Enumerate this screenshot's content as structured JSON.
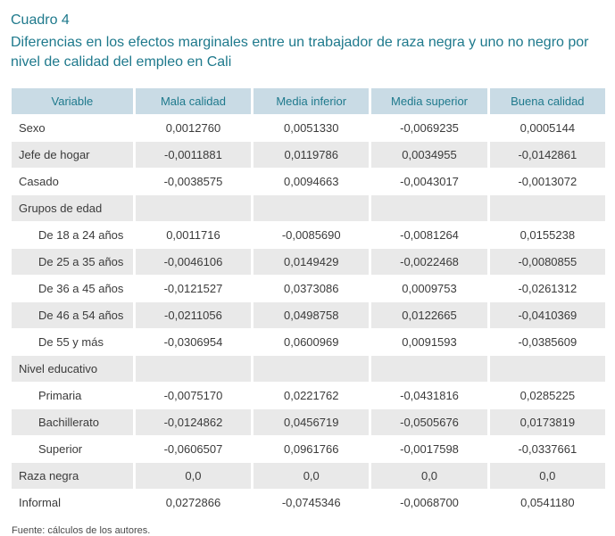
{
  "page": {
    "title": "Cuadro 4",
    "subtitle": "Diferencias en los efectos marginales entre un trabajador de raza negra y uno no negro por nivel de calidad del empleo en Cali",
    "source": "Fuente: cálculos de los autores."
  },
  "colors": {
    "accent_teal": "#1e798c",
    "header_bg": "#c9dbe5",
    "row_alt_bg": "#e9e9e9"
  },
  "table": {
    "columns": [
      "Variable",
      "Mala calidad",
      "Media inferior",
      "Media superior",
      "Buena calidad"
    ],
    "rows": [
      {
        "label": "Sexo",
        "type": "item",
        "values": [
          "0,0012760",
          "0,0051330",
          "-0,0069235",
          "0,0005144"
        ]
      },
      {
        "label": "Jefe de hogar",
        "type": "item",
        "values": [
          "-0,0011881",
          "0,0119786",
          "0,0034955",
          "-0,0142861"
        ]
      },
      {
        "label": "Casado",
        "type": "item",
        "values": [
          "-0,0038575",
          "0,0094663",
          "-0,0043017",
          "-0,0013072"
        ]
      },
      {
        "label": "Grupos de edad",
        "type": "section",
        "values": [
          "",
          "",
          "",
          ""
        ]
      },
      {
        "label": "De 18 a 24 años",
        "type": "sub",
        "values": [
          "0,0011716",
          "-0,0085690",
          "-0,0081264",
          "0,0155238"
        ]
      },
      {
        "label": "De 25 a 35 años",
        "type": "sub",
        "values": [
          "-0,0046106",
          "0,0149429",
          "-0,0022468",
          "-0,0080855"
        ]
      },
      {
        "label": "De 36 a 45 años",
        "type": "sub",
        "values": [
          "-0,0121527",
          "0,0373086",
          "0,0009753",
          "-0,0261312"
        ]
      },
      {
        "label": "De 46 a 54 años",
        "type": "sub",
        "values": [
          "-0,0211056",
          "0,0498758",
          "0,0122665",
          "-0,0410369"
        ]
      },
      {
        "label": "De 55 y más",
        "type": "sub",
        "values": [
          "-0,0306954",
          "0,0600969",
          "0,0091593",
          "-0,0385609"
        ]
      },
      {
        "label": "Nivel educativo",
        "type": "section",
        "values": [
          "",
          "",
          "",
          ""
        ]
      },
      {
        "label": "Primaria",
        "type": "sub",
        "values": [
          "-0,0075170",
          "0,0221762",
          "-0,0431816",
          "0,0285225"
        ]
      },
      {
        "label": "Bachillerato",
        "type": "sub",
        "values": [
          "-0,0124862",
          "0,0456719",
          "-0,0505676",
          "0,0173819"
        ]
      },
      {
        "label": "Superior",
        "type": "sub",
        "values": [
          "-0,0606507",
          "0,0961766",
          "-0,0017598",
          "-0,0337661"
        ]
      },
      {
        "label": "Raza negra",
        "type": "item",
        "values": [
          "0,0",
          "0,0",
          "0,0",
          "0,0"
        ]
      },
      {
        "label": "Informal",
        "type": "item",
        "values": [
          "0,0272866",
          "-0,0745346",
          "-0,0068700",
          "0,0541180"
        ]
      }
    ]
  }
}
